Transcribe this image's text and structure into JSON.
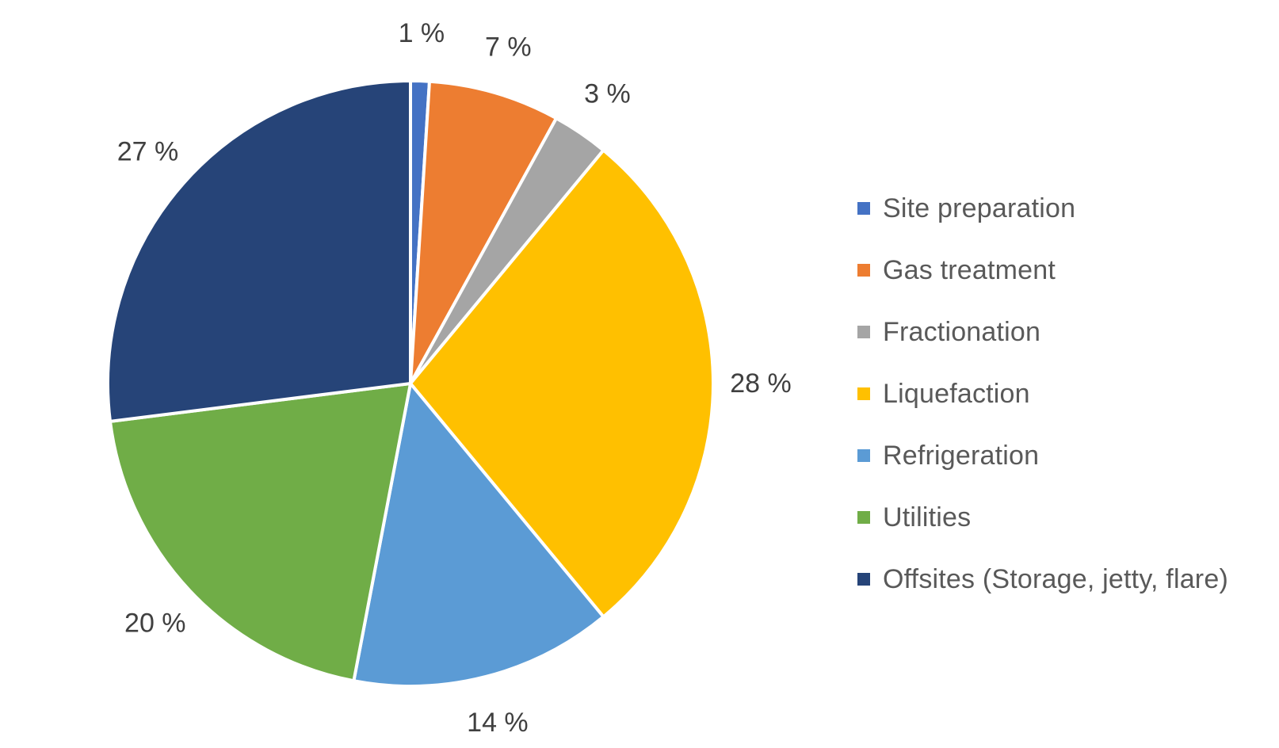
{
  "chart_data": {
    "type": "pie",
    "categories": [
      "Site preparation",
      "Gas treatment",
      "Fractionation",
      "Liquefaction",
      "Refrigeration",
      "Utilities",
      "Offsites (Storage, jetty, flare)"
    ],
    "values": [
      1,
      7,
      3,
      28,
      14,
      20,
      27
    ],
    "labels": [
      "1 %",
      "7 %",
      "3 %",
      "28 %",
      "14 %",
      "20 %",
      "27 %"
    ],
    "colors": [
      "#4472C4",
      "#ED7D31",
      "#A5A5A5",
      "#FFC000",
      "#5B9BD5",
      "#70AD47",
      "#264478"
    ],
    "start_angle_deg": 0,
    "direction": "clockwise",
    "legend_position": "right",
    "title": ""
  }
}
